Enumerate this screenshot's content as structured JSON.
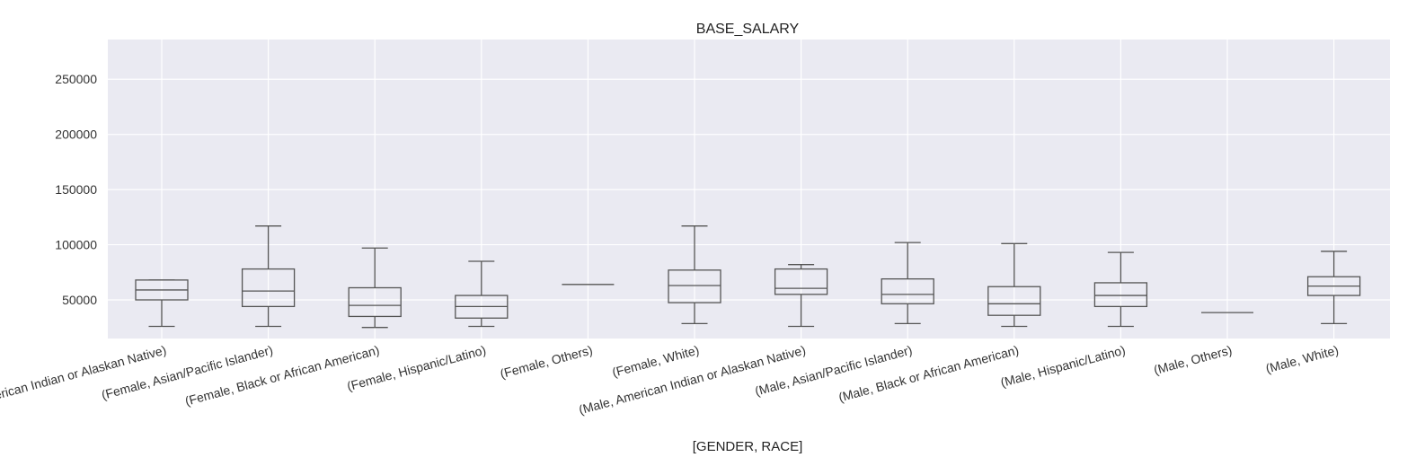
{
  "chart_data": {
    "type": "box",
    "title": "BASE_SALARY",
    "xlabel": "[GENDER, RACE]",
    "ylabel": "",
    "ylim": [
      15000,
      286000
    ],
    "yticks": [
      50000,
      100000,
      150000,
      200000,
      250000
    ],
    "yticklabels": [
      "50000",
      "100000",
      "150000",
      "200000",
      "250000"
    ],
    "grid": true,
    "categories": [
      "(Female, American Indian or Alaskan Native)",
      "(Female, Asian/Pacific Islander)",
      "(Female, Black or African American)",
      "(Female, Hispanic/Latino)",
      "(Female, Others)",
      "(Female, White)",
      "(Male, American Indian or Alaskan Native)",
      "(Male, Asian/Pacific Islander)",
      "(Male, Black or African American)",
      "(Male, Hispanic/Latino)",
      "(Male, Others)",
      "(Male, White)"
    ],
    "boxes": [
      {
        "whislo": 26000,
        "q1": 50000,
        "med": 59000,
        "q3": 68000,
        "whishi": 68000
      },
      {
        "whislo": 26000,
        "q1": 44000,
        "med": 58000,
        "q3": 78000,
        "whishi": 117000
      },
      {
        "whislo": 25000,
        "q1": 35000,
        "med": 45000,
        "q3": 61000,
        "whishi": 97000
      },
      {
        "whislo": 26000,
        "q1": 33500,
        "med": 44000,
        "q3": 54000,
        "whishi": 85000
      },
      {
        "whislo": 64000,
        "q1": 64000,
        "med": 64000,
        "q3": 64000,
        "whishi": 64000
      },
      {
        "whislo": 28500,
        "q1": 47500,
        "med": 63000,
        "q3": 77000,
        "whishi": 117000
      },
      {
        "whislo": 26000,
        "q1": 55000,
        "med": 60500,
        "q3": 78000,
        "whishi": 82000
      },
      {
        "whislo": 28500,
        "q1": 46500,
        "med": 55000,
        "q3": 69000,
        "whishi": 102000
      },
      {
        "whislo": 26000,
        "q1": 36000,
        "med": 46500,
        "q3": 62000,
        "whishi": 101000
      },
      {
        "whislo": 26000,
        "q1": 44000,
        "med": 54000,
        "q3": 65500,
        "whishi": 93000
      },
      {
        "whislo": 38500,
        "q1": 38500,
        "med": 38500,
        "q3": 38500,
        "whishi": 38500
      },
      {
        "whislo": 28500,
        "q1": 54000,
        "med": 62500,
        "q3": 71000,
        "whishi": 94000
      }
    ]
  }
}
